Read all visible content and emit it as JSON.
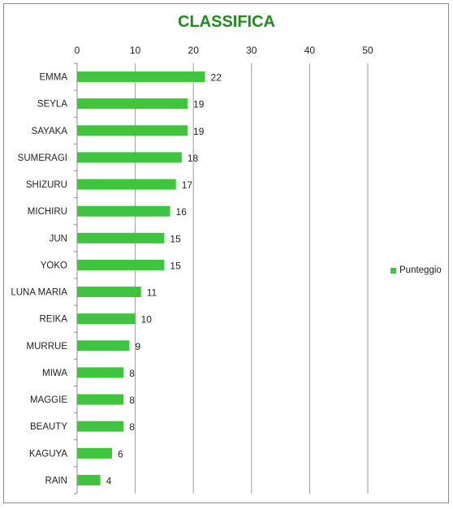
{
  "chart_data": {
    "type": "bar",
    "orientation": "horizontal",
    "title": "CLASSIFICA",
    "xlim": [
      0,
      50
    ],
    "ticks": [
      0,
      10,
      20,
      30,
      40,
      50
    ],
    "categories": [
      "EMMA",
      "SEYLA",
      "SAYAKA",
      "SUMERAGI",
      "SHIZURU",
      "MICHIRU",
      "JUN",
      "YOKO",
      "LUNA MARIA",
      "REIKA",
      "MURRUE",
      "MIWA",
      "MAGGIE",
      "BEAUTY",
      "KAGUYA",
      "RAIN"
    ],
    "series": [
      {
        "name": "Punteggio",
        "values": [
          22,
          19,
          19,
          18,
          17,
          16,
          15,
          15,
          11,
          10,
          9,
          8,
          8,
          8,
          6,
          4
        ]
      }
    ],
    "grid": true,
    "legend_position": "right",
    "bar_color": "#3ec43e",
    "title_color": "#1f8a1f"
  }
}
